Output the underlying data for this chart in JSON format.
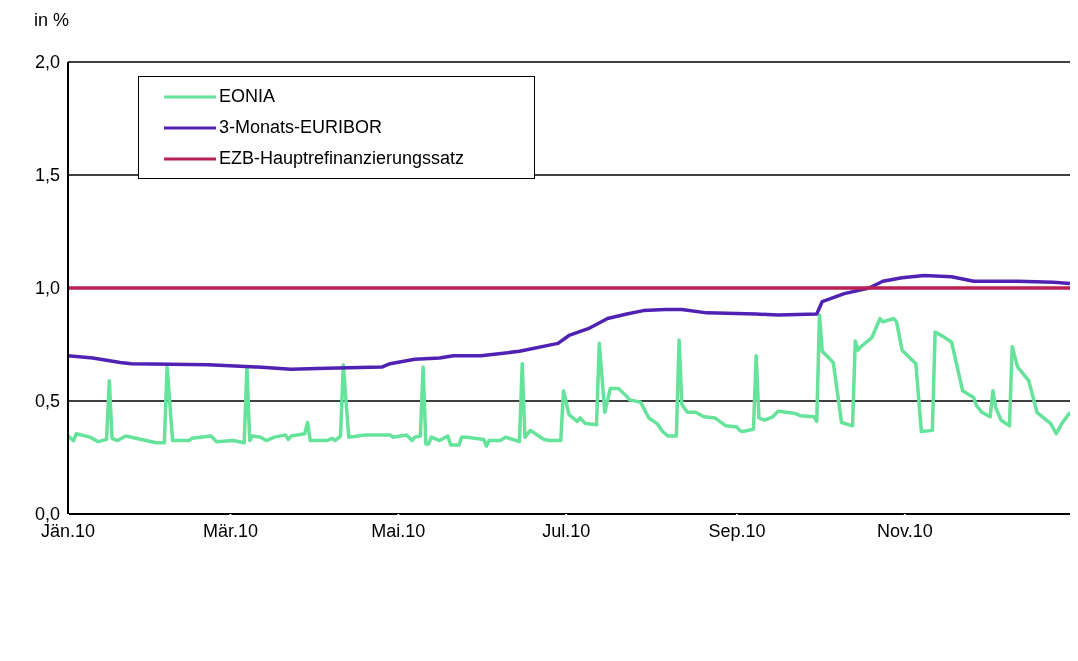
{
  "chart_data": {
    "type": "line",
    "ylabel": "in %",
    "xlim": [
      "2010-01-01",
      "2010-12-31"
    ],
    "xticks": [
      {
        "value": "2010-01-01",
        "label": "Jän.10"
      },
      {
        "value": "2010-03-01",
        "label": "Mär.10"
      },
      {
        "value": "2010-05-01",
        "label": "Mai.10"
      },
      {
        "value": "2010-07-01",
        "label": "Jul.10"
      },
      {
        "value": "2010-09-01",
        "label": "Sep.10"
      },
      {
        "value": "2010-11-01",
        "label": "Nov.10"
      }
    ],
    "ylim": [
      0,
      2
    ],
    "yticks": [
      {
        "value": 0,
        "label": "0,0"
      },
      {
        "value": 0.5,
        "label": "0,5"
      },
      {
        "value": 1,
        "label": "1,0"
      },
      {
        "value": 1.5,
        "label": "1,5"
      },
      {
        "value": 2,
        "label": "2,0"
      }
    ],
    "grid": "y",
    "legend": "top left",
    "marker": "none",
    "line_style": "solid",
    "series": [
      {
        "name": "EONIA",
        "color": "#66e39a",
        "x": [
          "2010-01-01",
          "2010-01-03",
          "2010-01-04",
          "2010-01-09",
          "2010-01-12",
          "2010-01-15",
          "2010-01-16",
          "2010-01-17",
          "2010-01-19",
          "2010-01-22",
          "2010-02-02",
          "2010-02-05",
          "2010-02-06",
          "2010-02-08",
          "2010-02-14",
          "2010-02-15",
          "2010-02-22",
          "2010-02-24",
          "2010-03-02",
          "2010-03-06",
          "2010-03-07",
          "2010-03-08",
          "2010-03-09",
          "2010-03-12",
          "2010-03-14",
          "2010-03-17",
          "2010-03-21",
          "2010-03-22",
          "2010-03-23",
          "2010-03-28",
          "2010-03-29",
          "2010-03-30",
          "2010-04-05",
          "2010-04-07",
          "2010-04-08",
          "2010-04-10",
          "2010-04-11",
          "2010-04-13",
          "2010-04-19",
          "2010-04-28",
          "2010-04-29",
          "2010-05-04",
          "2010-05-06",
          "2010-05-07",
          "2010-05-09",
          "2010-05-10",
          "2010-05-11",
          "2010-05-12",
          "2010-05-13",
          "2010-05-16",
          "2010-05-19",
          "2010-05-20",
          "2010-05-23",
          "2010-05-24",
          "2010-05-26",
          "2010-06-01",
          "2010-06-02",
          "2010-06-03",
          "2010-06-07",
          "2010-06-09",
          "2010-06-14",
          "2010-06-15",
          "2010-06-16",
          "2010-06-18",
          "2010-06-21",
          "2010-06-23",
          "2010-06-25",
          "2010-06-29",
          "2010-06-30",
          "2010-07-02",
          "2010-07-05",
          "2010-07-06",
          "2010-07-08",
          "2010-07-12",
          "2010-07-13",
          "2010-07-15",
          "2010-07-17",
          "2010-07-20",
          "2010-07-23",
          "2010-07-24",
          "2010-07-28",
          "2010-07-31",
          "2010-08-03",
          "2010-08-05",
          "2010-08-07",
          "2010-08-10",
          "2010-08-11",
          "2010-08-12",
          "2010-08-14",
          "2010-08-17",
          "2010-08-20",
          "2010-08-24",
          "2010-08-28",
          "2010-09-01",
          "2010-09-02",
          "2010-09-03",
          "2010-09-07",
          "2010-09-08",
          "2010-09-09",
          "2010-09-11",
          "2010-09-14",
          "2010-09-16",
          "2010-09-19",
          "2010-09-22",
          "2010-09-24",
          "2010-09-29",
          "2010-09-30",
          "2010-10-01",
          "2010-10-02",
          "2010-10-06",
          "2010-10-09",
          "2010-10-13",
          "2010-10-14",
          "2010-10-15",
          "2010-10-16",
          "2010-10-20",
          "2010-10-23",
          "2010-10-24",
          "2010-10-28",
          "2010-10-29",
          "2010-10-31",
          "2010-11-05",
          "2010-11-07",
          "2010-11-11",
          "2010-11-12",
          "2010-11-15",
          "2010-11-18",
          "2010-11-22",
          "2010-11-26",
          "2010-11-27",
          "2010-11-29",
          "2010-12-02",
          "2010-12-03",
          "2010-12-04",
          "2010-12-06",
          "2010-12-09",
          "2010-12-10",
          "2010-12-12",
          "2010-12-16",
          "2010-12-19",
          "2010-12-24",
          "2010-12-26",
          "2010-12-28",
          "2010-12-31"
        ],
        "values": [
          0.345,
          0.325,
          0.355,
          0.34,
          0.32,
          0.33,
          0.59,
          0.335,
          0.325,
          0.345,
          0.315,
          0.315,
          0.65,
          0.325,
          0.325,
          0.335,
          0.345,
          0.32,
          0.325,
          0.315,
          0.65,
          0.325,
          0.345,
          0.34,
          0.325,
          0.34,
          0.35,
          0.33,
          0.345,
          0.355,
          0.405,
          0.325,
          0.325,
          0.335,
          0.325,
          0.345,
          0.66,
          0.34,
          0.35,
          0.35,
          0.34,
          0.35,
          0.325,
          0.34,
          0.345,
          0.65,
          0.31,
          0.31,
          0.34,
          0.325,
          0.345,
          0.305,
          0.305,
          0.34,
          0.34,
          0.33,
          0.3,
          0.325,
          0.325,
          0.34,
          0.32,
          0.665,
          0.34,
          0.37,
          0.345,
          0.33,
          0.325,
          0.325,
          0.545,
          0.44,
          0.41,
          0.425,
          0.4,
          0.395,
          0.755,
          0.45,
          0.555,
          0.555,
          0.52,
          0.505,
          0.495,
          0.425,
          0.4,
          0.365,
          0.345,
          0.345,
          0.77,
          0.485,
          0.45,
          0.45,
          0.43,
          0.425,
          0.39,
          0.385,
          0.37,
          0.365,
          0.375,
          0.7,
          0.425,
          0.415,
          0.43,
          0.455,
          0.45,
          0.445,
          0.435,
          0.43,
          0.41,
          0.88,
          0.72,
          0.67,
          0.405,
          0.39,
          0.765,
          0.725,
          0.74,
          0.78,
          0.865,
          0.85,
          0.865,
          0.85,
          0.725,
          0.665,
          0.365,
          0.37,
          0.805,
          0.785,
          0.76,
          0.545,
          0.515,
          0.48,
          0.45,
          0.43,
          0.545,
          0.47,
          0.415,
          0.39,
          0.74,
          0.65,
          0.59,
          0.45,
          0.4,
          0.355,
          0.4,
          0.45
        ]
      },
      {
        "name": "3-Monats-EURIBOR",
        "color": "#5022b4",
        "x": [
          "2010-01-01",
          "2010-01-10",
          "2010-01-20",
          "2010-01-24",
          "2010-02-21",
          "2010-03-11",
          "2010-03-23",
          "2010-04-05",
          "2010-04-25",
          "2010-04-28",
          "2010-05-07",
          "2010-05-16",
          "2010-05-21",
          "2010-05-31",
          "2010-06-14",
          "2010-06-28",
          "2010-07-02",
          "2010-07-09",
          "2010-07-16",
          "2010-07-23",
          "2010-07-29",
          "2010-08-06",
          "2010-08-12",
          "2010-08-21",
          "2010-09-08",
          "2010-09-16",
          "2010-09-30",
          "2010-10-02",
          "2010-10-10",
          "2010-10-19",
          "2010-10-24",
          "2010-10-31",
          "2010-11-08",
          "2010-11-18",
          "2010-11-26",
          "2010-12-12",
          "2010-12-25",
          "2010-12-31"
        ],
        "values": [
          0.7,
          0.69,
          0.67,
          0.665,
          0.66,
          0.65,
          0.64,
          0.645,
          0.65,
          0.665,
          0.685,
          0.69,
          0.7,
          0.7,
          0.72,
          0.755,
          0.79,
          0.82,
          0.865,
          0.885,
          0.9,
          0.905,
          0.905,
          0.89,
          0.885,
          0.88,
          0.885,
          0.94,
          0.975,
          1.0,
          1.03,
          1.045,
          1.055,
          1.05,
          1.03,
          1.03,
          1.025,
          1.02
        ]
      },
      {
        "name": "EZB-Hauptrefinanzierungssatz",
        "color": "#b8204f",
        "x": [
          "2010-01-01",
          "2010-12-31"
        ],
        "values": [
          1,
          1
        ]
      }
    ]
  }
}
